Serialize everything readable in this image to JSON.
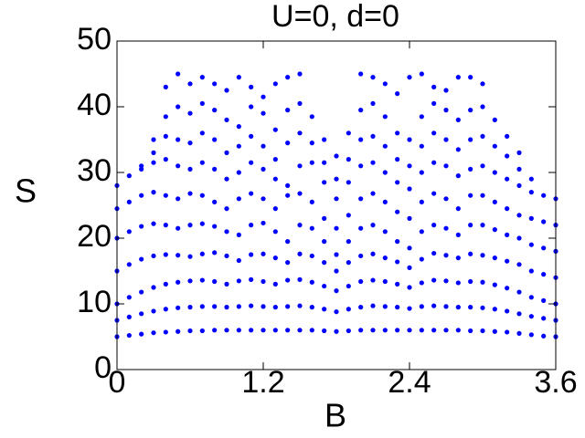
{
  "chart_data": {
    "type": "scatter",
    "title": "U=0, d=0",
    "x_label": "B",
    "y_label": "S",
    "x": [
      0.0,
      0.1,
      0.2,
      0.3,
      0.4,
      0.5,
      0.6,
      0.7,
      0.8,
      0.9,
      1.0,
      1.1,
      1.2,
      1.3,
      1.4,
      1.5,
      1.6,
      1.7,
      1.8,
      1.9,
      2.0,
      2.1,
      2.2,
      2.3,
      2.4,
      2.5,
      2.6,
      2.7,
      2.8,
      2.9,
      3.0,
      3.1,
      3.2,
      3.3,
      3.4,
      3.5,
      3.6
    ],
    "series": [
      {
        "color": "#0000ff",
        "values": [
          5.0,
          5.2,
          5.4,
          5.6,
          5.7,
          5.8,
          5.9,
          5.9,
          6.0,
          6.0,
          6.0,
          6.0,
          6.0,
          6.0,
          6.0,
          6.0,
          6.0,
          5.9,
          5.8,
          5.9,
          6.0,
          6.0,
          6.0,
          6.0,
          6.0,
          6.0,
          6.0,
          6.0,
          6.0,
          5.9,
          5.9,
          5.8,
          5.7,
          5.5,
          5.3,
          5.1,
          5.0
        ]
      },
      {
        "color": "#0000ff",
        "values": [
          7.5,
          8.0,
          8.5,
          8.9,
          9.2,
          9.4,
          9.5,
          9.6,
          9.6,
          9.5,
          9.6,
          9.7,
          9.6,
          9.5,
          9.6,
          9.7,
          9.5,
          9.2,
          8.8,
          9.2,
          9.5,
          9.7,
          9.6,
          9.5,
          9.3,
          9.6,
          9.7,
          9.6,
          9.5,
          9.5,
          9.4,
          9.2,
          8.9,
          8.5,
          8.1,
          7.8,
          7.5
        ]
      },
      {
        "color": "#0000ff",
        "values": [
          10.0,
          11.0,
          11.8,
          12.5,
          13.0,
          13.3,
          13.5,
          13.6,
          13.4,
          13.0,
          13.5,
          13.7,
          13.4,
          13.0,
          13.6,
          13.7,
          13.3,
          12.7,
          12.0,
          12.7,
          13.4,
          13.6,
          13.4,
          13.0,
          12.5,
          13.2,
          13.6,
          13.5,
          13.2,
          13.4,
          13.3,
          12.9,
          12.4,
          11.8,
          11.0,
          10.5,
          10.0
        ]
      },
      {
        "color": "#0000ff",
        "values": [
          15.0,
          16.0,
          16.8,
          17.3,
          17.5,
          17.4,
          17.2,
          17.6,
          17.8,
          17.3,
          16.6,
          17.5,
          17.6,
          17.0,
          16.3,
          17.6,
          17.3,
          16.3,
          15.0,
          16.3,
          17.3,
          17.6,
          17.0,
          16.4,
          15.5,
          16.8,
          17.7,
          17.4,
          17.0,
          17.6,
          17.4,
          17.0,
          16.5,
          16.0,
          15.0,
          14.5,
          14.0
        ]
      },
      {
        "color": "#0000ff",
        "values": [
          20.0,
          21.0,
          21.8,
          22.2,
          22.0,
          21.5,
          22.0,
          22.2,
          21.8,
          21.0,
          20.5,
          22.0,
          22.3,
          21.0,
          19.5,
          22.0,
          21.5,
          19.5,
          17.5,
          19.5,
          21.5,
          22.0,
          21.0,
          19.5,
          18.5,
          21.0,
          22.0,
          21.5,
          20.5,
          22.0,
          22.0,
          21.3,
          20.5,
          20.0,
          19.0,
          18.5,
          18.0
        ]
      },
      {
        "color": "#0000ff",
        "values": [
          24.5,
          25.5,
          26.5,
          27.0,
          26.5,
          26.0,
          26.8,
          26.5,
          25.5,
          24.5,
          26.0,
          26.8,
          26.0,
          24.5,
          26.5,
          26.8,
          25.5,
          23.0,
          21.5,
          23.5,
          26.0,
          26.8,
          25.5,
          24.0,
          23.0,
          25.5,
          26.8,
          26.0,
          24.5,
          26.5,
          26.5,
          25.5,
          24.5,
          23.5,
          23.0,
          22.5,
          22.0
        ]
      },
      {
        "color": "#0000ff",
        "values": [
          28.0,
          29.5,
          30.5,
          31.5,
          32.0,
          31.0,
          30.5,
          31.5,
          30.5,
          29.0,
          30.0,
          31.5,
          30.5,
          29.0,
          28.0,
          31.0,
          31.5,
          28.5,
          26.0,
          28.5,
          31.0,
          31.5,
          30.0,
          28.5,
          27.5,
          30.0,
          31.5,
          31.0,
          29.5,
          30.5,
          31.0,
          30.0,
          29.0,
          28.0,
          27.0,
          26.5,
          26.0
        ]
      },
      {
        "color": "#0000ff",
        "values": [
          null,
          null,
          31.0,
          33.0,
          35.5,
          35.0,
          34.5,
          36.0,
          35.0,
          33.0,
          34.0,
          35.5,
          34.0,
          32.0,
          34.5,
          36.0,
          34.5,
          31.5,
          29.0,
          32.0,
          35.0,
          35.5,
          34.0,
          32.0,
          31.0,
          34.0,
          36.0,
          35.0,
          33.5,
          35.0,
          35.5,
          34.0,
          32.5,
          30.5,
          29.0,
          null,
          null
        ]
      },
      {
        "color": "#0000ff",
        "values": [
          null,
          null,
          null,
          35.0,
          38.5,
          40.0,
          39.0,
          40.5,
          39.5,
          38.0,
          37.0,
          40.0,
          39.0,
          36.5,
          39.5,
          40.5,
          38.5,
          35.0,
          32.5,
          36.0,
          39.5,
          40.5,
          38.5,
          36.0,
          35.0,
          38.5,
          40.5,
          39.5,
          38.0,
          39.5,
          40.0,
          38.0,
          35.5,
          33.0,
          null,
          null,
          null
        ]
      },
      {
        "color": "#0000ff",
        "values": [
          null,
          null,
          null,
          null,
          43.0,
          45.0,
          43.5,
          44.5,
          43.5,
          42.5,
          44.5,
          43.0,
          41.5,
          43.5,
          44.5,
          45.0,
          null,
          null,
          null,
          null,
          45.0,
          44.5,
          43.5,
          42.0,
          44.5,
          45.0,
          43.0,
          42.5,
          44.5,
          44.5,
          43.5,
          null,
          null,
          null,
          null,
          null,
          null
        ]
      }
    ],
    "xlim": [
      0,
      3.6
    ],
    "xticks": [
      0,
      1.2,
      2.4,
      3.6
    ],
    "ylim": [
      0,
      50
    ],
    "yticks": [
      0,
      10,
      20,
      30,
      40,
      50
    ]
  }
}
